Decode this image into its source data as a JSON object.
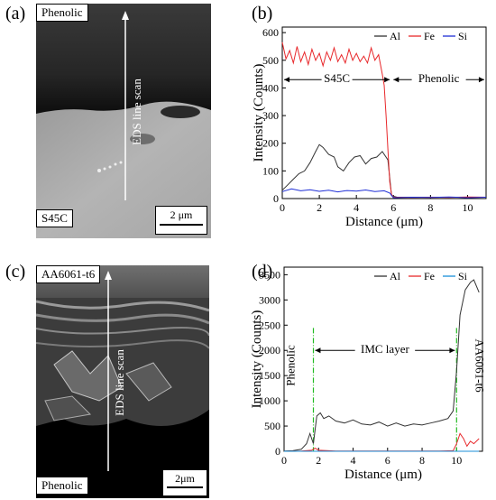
{
  "panels": {
    "a": {
      "label": "(a)",
      "top_tag": "Phenolic",
      "bottom_tag": "S45C",
      "scan_label": "EDS line scan",
      "scale_bar": "2 μm"
    },
    "b": {
      "label": "(b)"
    },
    "c": {
      "label": "(c)",
      "top_tag": "AA6061-t6",
      "bottom_tag": "Phenolic",
      "scan_label": "EDS line scan",
      "scale_bar": "2μm"
    },
    "d": {
      "label": "(d)"
    }
  },
  "chart_data": [
    {
      "type": "line",
      "panel": "b",
      "xlabel": "Distance (μm)",
      "ylabel": "Intensity (Counts)",
      "xlim": [
        0,
        11
      ],
      "ylim": [
        0,
        620
      ],
      "xticks": [
        0,
        2,
        4,
        6,
        8,
        10
      ],
      "yticks": [
        0,
        100,
        200,
        300,
        400,
        500,
        600
      ],
      "legend_position": "top-right",
      "annotations": [
        {
          "text": "S45C",
          "x_from": 0.1,
          "x_to": 5.8,
          "y": 430
        },
        {
          "text": "Phenolic",
          "x_from": 6.0,
          "x_to": 10.9,
          "y": 430
        }
      ],
      "series": [
        {
          "name": "Al",
          "color": "#333333",
          "x": [
            0,
            0.3,
            0.6,
            0.9,
            1.2,
            1.5,
            1.8,
            2.0,
            2.2,
            2.5,
            2.8,
            3.0,
            3.3,
            3.6,
            3.9,
            4.2,
            4.5,
            4.8,
            5.1,
            5.4,
            5.7,
            5.9,
            6.2,
            7,
            8,
            9,
            10,
            11
          ],
          "y": [
            30,
            50,
            70,
            90,
            100,
            130,
            170,
            195,
            185,
            160,
            150,
            115,
            100,
            130,
            150,
            155,
            125,
            145,
            150,
            170,
            140,
            10,
            5,
            5,
            5,
            5,
            5,
            5
          ]
        },
        {
          "name": "Fe",
          "color": "#e8282b",
          "x": [
            0,
            0.2,
            0.4,
            0.6,
            0.8,
            1.0,
            1.2,
            1.4,
            1.6,
            1.8,
            2.0,
            2.2,
            2.4,
            2.6,
            2.8,
            3.0,
            3.2,
            3.4,
            3.6,
            3.8,
            4.0,
            4.2,
            4.4,
            4.6,
            4.8,
            5.0,
            5.2,
            5.4,
            5.5,
            5.6,
            5.7,
            5.8,
            5.9,
            6.0,
            7,
            8,
            9,
            10,
            11
          ],
          "y": [
            565,
            505,
            535,
            490,
            550,
            495,
            530,
            485,
            540,
            500,
            525,
            480,
            530,
            500,
            545,
            495,
            520,
            490,
            540,
            500,
            525,
            495,
            515,
            490,
            545,
            500,
            520,
            450,
            410,
            300,
            180,
            60,
            15,
            5,
            4,
            5,
            4,
            6,
            5
          ]
        },
        {
          "name": "Si",
          "color": "#1f2fd6",
          "x": [
            0,
            0.5,
            1.0,
            1.5,
            2.0,
            2.5,
            3.0,
            3.5,
            4.0,
            4.5,
            5.0,
            5.5,
            5.8,
            6.0,
            7,
            8,
            9,
            10,
            11
          ],
          "y": [
            25,
            35,
            28,
            32,
            26,
            30,
            24,
            29,
            27,
            31,
            25,
            28,
            20,
            3,
            5,
            4,
            6,
            3,
            5
          ]
        }
      ]
    },
    {
      "type": "line",
      "panel": "d",
      "xlabel": "Distance (μm)",
      "ylabel": "Intensity (Counts)",
      "xlim": [
        0,
        11.5
      ],
      "ylim": [
        0,
        3650
      ],
      "xticks": [
        0,
        2,
        4,
        6,
        8,
        10
      ],
      "yticks": [
        0,
        500,
        1000,
        1500,
        2000,
        2500,
        3000,
        3500
      ],
      "legend_position": "top-right",
      "annotations": [
        {
          "text": "IMC layer",
          "x_from": 1.8,
          "x_to": 9.9,
          "y": 2000
        },
        {
          "text": "Phenolic",
          "x": 0.6,
          "y": 1700,
          "rotation": -90
        },
        {
          "text": "AA6061-t6",
          "x": 11.1,
          "y": 1700,
          "rotation": 90
        }
      ],
      "dividers": [
        1.7,
        10.0
      ],
      "series": [
        {
          "name": "Al",
          "color": "#333333",
          "x": [
            0,
            0.5,
            1.0,
            1.3,
            1.5,
            1.7,
            1.9,
            2.1,
            2.3,
            2.6,
            3.0,
            3.5,
            4.0,
            4.5,
            5.0,
            5.5,
            6.0,
            6.5,
            7.0,
            7.5,
            8.0,
            8.5,
            9.0,
            9.5,
            9.8,
            10.0,
            10.2,
            10.5,
            10.8,
            11.0,
            11.3
          ],
          "y": [
            5,
            10,
            40,
            150,
            350,
            150,
            700,
            760,
            650,
            700,
            600,
            560,
            620,
            540,
            520,
            580,
            500,
            560,
            500,
            540,
            520,
            560,
            600,
            650,
            800,
            1600,
            2700,
            3200,
            3350,
            3400,
            3150
          ]
        },
        {
          "name": "Fe",
          "color": "#e8282b",
          "x": [
            0,
            1.0,
            1.6,
            1.8,
            2.0,
            3,
            4,
            5,
            6,
            7,
            8,
            9,
            9.8,
            10.0,
            10.2,
            10.4,
            10.6,
            10.8,
            11.0,
            11.3
          ],
          "y": [
            0,
            5,
            20,
            60,
            20,
            5,
            5,
            5,
            5,
            5,
            5,
            5,
            10,
            150,
            350,
            250,
            100,
            200,
            150,
            250
          ]
        },
        {
          "name": "Si",
          "color": "#1a8fd8",
          "x": [
            0,
            1,
            2,
            3,
            4,
            5,
            6,
            7,
            8,
            9,
            10,
            11.3
          ],
          "y": [
            0,
            0,
            0,
            0,
            0,
            0,
            0,
            0,
            0,
            0,
            0,
            0
          ]
        }
      ]
    }
  ]
}
